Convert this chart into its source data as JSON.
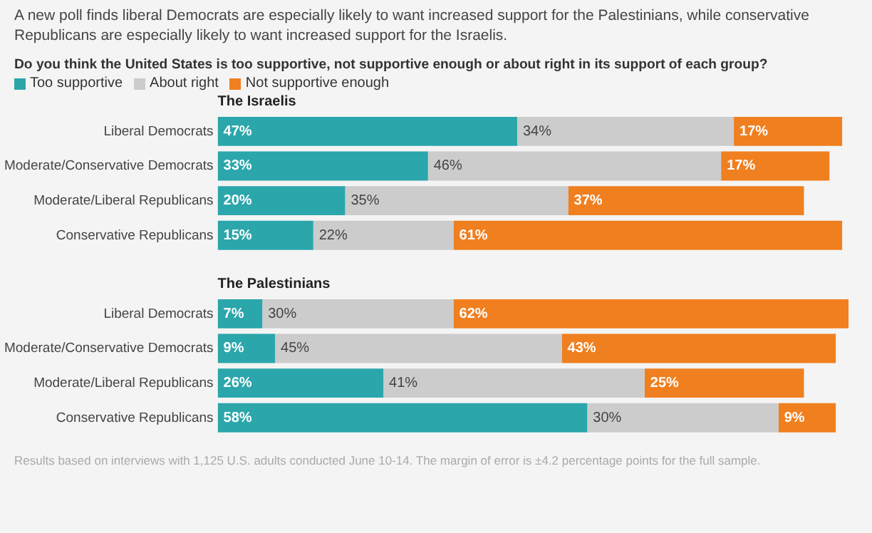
{
  "chart_data": [
    {
      "type": "bar",
      "orientation": "horizontal",
      "stacked": true,
      "title": "The Israelis",
      "subtitle": "A new poll finds liberal Democrats are especially likely to want increased support for the Palestinians, while conservative Republicans are especially likely to want increased support for the Israelis.",
      "annotations": [
        "Do you think the United States is too supportive, not supportive enough or about right in its support of each group?"
      ],
      "legend": "top left",
      "tick_labels": "y",
      "categories": [
        "Liberal Democrats",
        "Moderate/Conservative Democrats",
        "Moderate/Liberal Republicans",
        "Conservative Republicans"
      ],
      "series": [
        {
          "name": "Too supportive",
          "color": "#2ba6ab",
          "values": [
            47,
            33,
            20,
            15
          ],
          "value_labels": [
            "47%",
            "33%",
            "20%",
            "15%"
          ]
        },
        {
          "name": "About right",
          "color": "#cccccc",
          "values": [
            34,
            46,
            35,
            22
          ],
          "value_labels": [
            "34%",
            "46%",
            "35%",
            "22%"
          ]
        },
        {
          "name": "Not supportive enough",
          "color": "#f07f1f",
          "values": [
            17,
            17,
            37,
            61
          ],
          "value_labels": [
            "17%",
            "17%",
            "37%",
            "61%"
          ]
        }
      ]
    },
    {
      "type": "bar",
      "orientation": "horizontal",
      "stacked": true,
      "title": "The Palestinians",
      "annotations": [
        "Results based on interviews with 1,125 U.S. adults conducted June 10-14. The margin of error is ±4.2 percentage points for the full sample."
      ],
      "tick_labels": "y",
      "categories": [
        "Liberal Democrats",
        "Moderate/Conservative Democrats",
        "Moderate/Liberal Republicans",
        "Conservative Republicans"
      ],
      "series": [
        {
          "color": "#2ba6ab",
          "values": [
            7,
            9,
            26,
            58
          ],
          "value_labels": [
            "7%",
            "9%",
            "26%",
            "58%"
          ]
        },
        {
          "color": "#cccccc",
          "values": [
            30,
            45,
            41,
            30
          ],
          "value_labels": [
            "30%",
            "45%",
            "41%",
            "30%"
          ]
        },
        {
          "color": "#f07f1f",
          "values": [
            62,
            43,
            25,
            9
          ],
          "value_labels": [
            "62%",
            "43%",
            "25%",
            "9%"
          ]
        }
      ]
    }
  ]
}
